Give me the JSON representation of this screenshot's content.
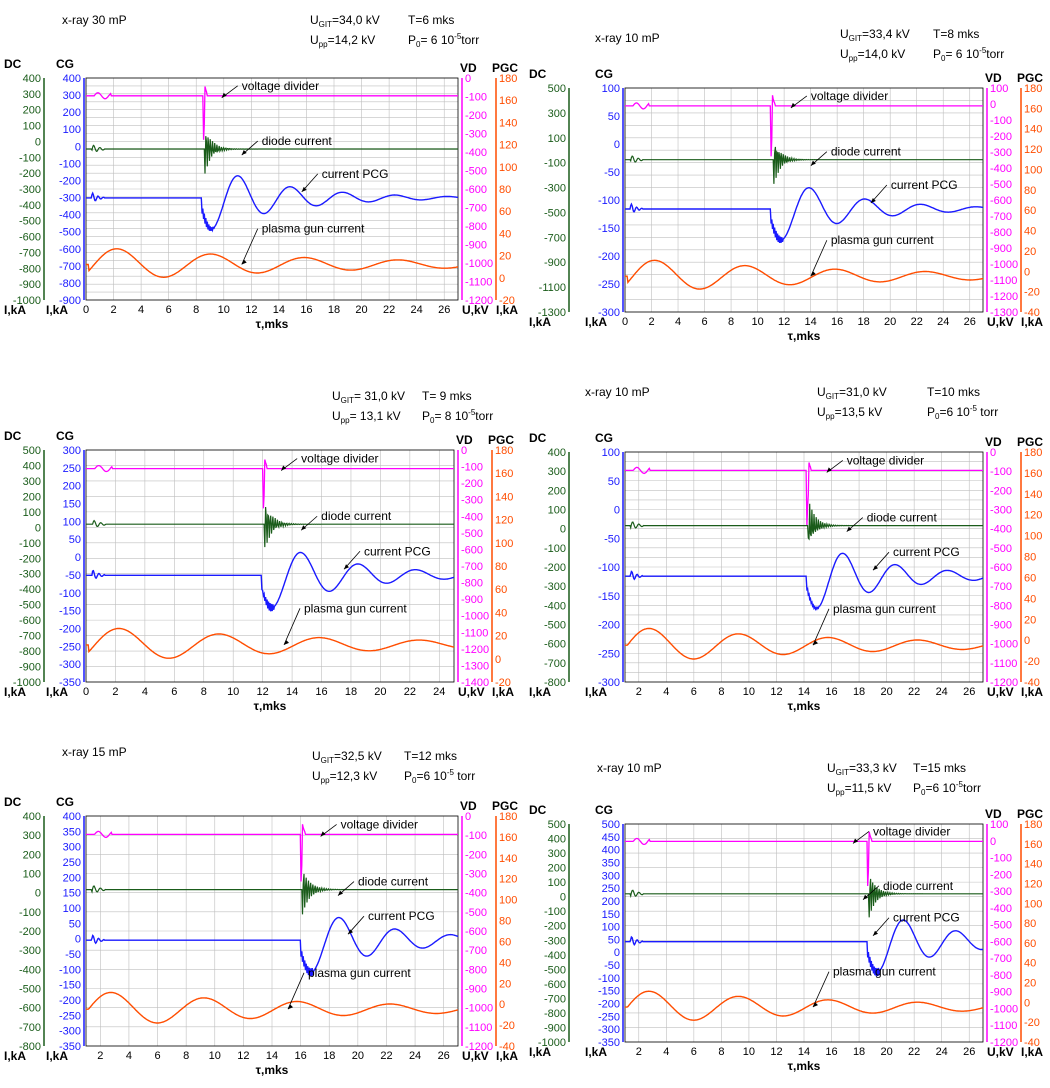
{
  "colors": {
    "dc": "#1a5c1a",
    "cg": "#1a1aff",
    "vd": "#ff00ff",
    "pgc": "#ff4d00",
    "grid": "#bfbfbf",
    "text": "#000000"
  },
  "chart_data": [
    {
      "type": "line",
      "header": {
        "title": "x-ray 30 mP",
        "ugit": "U",
        "ugit_sub": "GIT",
        "ugit_val": "=34,0 kV",
        "upp": "U",
        "upp_sub": "pp",
        "upp_val": "=14,2 kV",
        "t": "T=6 mks",
        "p0": "P",
        "p0_sub": "0",
        "p0_val": "= 6 10",
        "p0_exp": "-5",
        "p0_unit": "torr"
      },
      "axes": {
        "dc_title": "DC",
        "cg_title": "CG",
        "vd_title": "VD",
        "pgc_title": "PGC",
        "bottom_dc": "I,kA",
        "bottom_cg": "I,kA",
        "bottom_vd": "U,kV",
        "bottom_pgc": "I,kA",
        "xlabel": "τ,mks"
      },
      "xlim": [
        0,
        27
      ],
      "xticks": [
        0,
        2,
        4,
        6,
        8,
        10,
        12,
        14,
        16,
        18,
        20,
        22,
        24,
        26
      ],
      "dc_ticks": [
        400,
        350,
        300,
        250,
        200,
        150,
        100,
        50,
        0,
        -50,
        -100,
        -150,
        -200,
        -250,
        -300,
        -350,
        -400,
        -450,
        -500,
        -550,
        -600,
        -650,
        -700,
        -750,
        -800,
        -850,
        -900,
        -950,
        -1000
      ],
      "cg_ticks": [
        400,
        300,
        200,
        100,
        0,
        -100,
        -200,
        -300,
        -400,
        -500,
        -600,
        -700,
        -800,
        -900
      ],
      "vd_ticks": [
        0,
        -100,
        -200,
        -300,
        -400,
        -500,
        -600,
        -700,
        -800,
        -900,
        -1000,
        -1100,
        -1200
      ],
      "pgc_ticks": [
        180,
        160,
        140,
        120,
        100,
        80,
        60,
        40,
        20,
        0,
        -20
      ],
      "labels": {
        "vd": "voltage divider",
        "dc": "diode current",
        "cg": "current PCG",
        "pgc": "plasma gun current"
      },
      "traces": {
        "vd_level": 0,
        "vd_event_t": 8.5,
        "vd_min": -300,
        "dc_level": 0,
        "dc_event_t": 8.6,
        "dc_min": -250,
        "cg_level": 0,
        "cg_event_t": 8.4,
        "cg_min": -300,
        "cg_peaks": [
          100,
          60,
          40,
          20
        ],
        "cg_period": 3.8,
        "pgc_peaks": [
          20,
          -20,
          15,
          -10,
          10,
          -5
        ],
        "pgc_period": 6.8,
        "pgc_t0": 2.3
      }
    },
    {
      "type": "line",
      "header": {
        "title": "x-ray 10 mP",
        "ugit": "U",
        "ugit_sub": "GIT",
        "ugit_val": "=33,4 kV",
        "upp": "U",
        "upp_sub": "pp",
        "upp_val": "=14,0 kV",
        "t": "T=8 mks",
        "p0": "P",
        "p0_sub": "0",
        "p0_val": "= 6 10",
        "p0_exp": "-5",
        "p0_unit": "torr"
      },
      "axes": {
        "dc_title": "DC",
        "cg_title": "CG",
        "vd_title": "VD",
        "pgc_title": "PGC",
        "bottom_dc": "I,kA",
        "bottom_cg": "I,kA",
        "bottom_vd": "U,kV",
        "bottom_pgc": "I,kA",
        "xlabel": "τ,mks"
      },
      "xlim": [
        0,
        27
      ],
      "xticks": [
        0,
        2,
        4,
        6,
        8,
        10,
        12,
        14,
        16,
        18,
        20,
        22,
        24,
        26
      ],
      "dc_ticks": [
        500,
        400,
        300,
        200,
        100,
        0,
        -100,
        -200,
        -300,
        -400,
        -500,
        -600,
        -700,
        -800,
        -900,
        -1000,
        -1100,
        -1200,
        -1300
      ],
      "cg_ticks": [
        100,
        50,
        0,
        -50,
        -100,
        -150,
        -200,
        -250,
        -300
      ],
      "vd_ticks": [
        100,
        0,
        -100,
        -200,
        -300,
        -400,
        -500,
        -600,
        -700,
        -800,
        -900,
        -1000,
        -1100,
        -1200,
        -1300
      ],
      "pgc_ticks": [
        180,
        160,
        140,
        120,
        100,
        80,
        60,
        40,
        20,
        0,
        -20,
        -40
      ],
      "labels": {
        "vd": "voltage divider",
        "dc": "diode current",
        "cg": "current PCG",
        "pgc": "plasma gun current"
      },
      "traces": {
        "vd_level": 0,
        "vd_event_t": 11.0,
        "vd_min": -400,
        "dc_level": -100,
        "dc_event_t": 11.2,
        "dc_min": -400,
        "cg_level": -700,
        "cg_event_t": 11.0,
        "cg_min": -950,
        "cg_peaks": [
          -550,
          -600,
          -620,
          -640
        ],
        "cg_period": 4.2,
        "pgc_peaks": [
          20,
          -20,
          15,
          -10,
          10,
          -5
        ],
        "pgc_period": 6.8,
        "pgc_t0": 2.3
      }
    },
    {
      "type": "line",
      "header": {
        "title": "",
        "ugit": "U",
        "ugit_sub": "GIT",
        "ugit_val": "= 31,0 kV",
        "upp": "U",
        "upp_sub": "pp",
        "upp_val": "= 13,1 kV",
        "t": "T= 9 mks",
        "p0": "P",
        "p0_sub": "0",
        "p0_val": "= 8 10",
        "p0_exp": "-5",
        "p0_unit": "torr"
      },
      "axes": {
        "dc_title": "DC",
        "cg_title": "CG",
        "vd_title": "VD",
        "pgc_title": "PGC",
        "bottom_dc": "I,kA",
        "bottom_cg": "I,kA",
        "bottom_vd": "U,kV",
        "bottom_pgc": "I,kA",
        "xlabel": "τ,mks"
      },
      "xlim": [
        0,
        25
      ],
      "xticks": [
        0,
        2,
        4,
        6,
        8,
        10,
        12,
        14,
        16,
        18,
        20,
        22,
        24
      ],
      "dc_ticks": [
        500,
        400,
        300,
        200,
        100,
        0,
        -100,
        -200,
        -300,
        -400,
        -500,
        -600,
        -700,
        -800,
        -900,
        -1000
      ],
      "cg_ticks": [
        300,
        250,
        200,
        150,
        100,
        50,
        0,
        -50,
        -100,
        -150,
        -200,
        -250,
        -300,
        -350
      ],
      "vd_ticks": [
        0,
        -100,
        -200,
        -300,
        -400,
        -500,
        -600,
        -700,
        -800,
        -900,
        -1000,
        -1100,
        -1200,
        -1300,
        -1400
      ],
      "pgc_ticks": [
        180,
        160,
        140,
        120,
        100,
        80,
        60,
        40,
        20,
        0,
        -20
      ],
      "labels": {
        "vd": "voltage divider",
        "dc": "diode current",
        "cg": "current PCG",
        "pgc": "plasma gun current"
      },
      "traces": {
        "vd_level": 0,
        "vd_event_t": 12.0,
        "vd_min": -250,
        "dc_level": 0,
        "dc_event_t": 12.1,
        "dc_min": -200,
        "cg_level": 0,
        "cg_event_t": 11.9,
        "cg_min": -150,
        "cg_peaks": [
          100,
          70,
          50,
          30
        ],
        "cg_period": 3.9,
        "pgc_peaks": [
          20,
          -20,
          15,
          -10,
          10,
          -5
        ],
        "pgc_period": 6.8,
        "pgc_t0": 2.3
      }
    },
    {
      "type": "line",
      "header": {
        "title": "x-ray 10 mP",
        "ugit": "U",
        "ugit_sub": "GIT",
        "ugit_val": "=31,0 kV",
        "upp": "U",
        "upp_sub": "pp",
        "upp_val": "=13,5 kV",
        "t": "T=10 mks",
        "p0": "P",
        "p0_sub": "0",
        "p0_val": "=6 10",
        "p0_exp": "-5",
        "p0_unit": " torr"
      },
      "axes": {
        "dc_title": "DC",
        "cg_title": "CG",
        "vd_title": "VD",
        "pgc_title": "PGC",
        "bottom_dc": "I,kA",
        "bottom_cg": "I,kA",
        "bottom_vd": "U,kV",
        "bottom_pgc": "I,kA",
        "xlabel": "τ,mks"
      },
      "xlim": [
        1,
        27
      ],
      "xticks": [
        2,
        4,
        6,
        8,
        10,
        12,
        14,
        16,
        18,
        20,
        22,
        24,
        26
      ],
      "dc_ticks": [
        400,
        350,
        300,
        250,
        200,
        150,
        100,
        50,
        0,
        -50,
        -100,
        -150,
        -200,
        -250,
        -300,
        -350,
        -400,
        -450,
        -500,
        -550,
        -600,
        -650,
        -700,
        -750,
        -800
      ],
      "cg_ticks": [
        100,
        50,
        0,
        -50,
        -100,
        -150,
        -200,
        -250,
        -300
      ],
      "vd_ticks": [
        0,
        -100,
        -200,
        -300,
        -400,
        -500,
        -600,
        -700,
        -800,
        -900,
        -1000,
        -1100,
        -1200
      ],
      "pgc_ticks": [
        180,
        160,
        140,
        120,
        100,
        80,
        60,
        40,
        20,
        0,
        -20,
        -40
      ],
      "labels": {
        "vd": "voltage divider",
        "dc": "diode current",
        "cg": "current PCG",
        "pgc": "plasma gun current"
      },
      "traces": {
        "vd_level": 0,
        "vd_event_t": 14.2,
        "vd_min": -350,
        "dc_level": 0,
        "dc_event_t": 14.3,
        "dc_min": -200,
        "cg_level": 0,
        "cg_event_t": 14.2,
        "cg_min": -200,
        "cg_peaks": [
          80,
          50,
          40,
          30
        ],
        "cg_period": 3.8,
        "pgc_peaks": [
          30,
          -40,
          25,
          -20,
          20,
          -10
        ],
        "pgc_period": 6.5,
        "pgc_t0": 2.8
      }
    },
    {
      "type": "line",
      "header": {
        "title": "x-ray 15 mP",
        "ugit": "U",
        "ugit_sub": "GIT",
        "ugit_val": "=32,5 kV",
        "upp": "U",
        "upp_sub": "pp",
        "upp_val": "=12,3 kV",
        "t": "T=12 mks",
        "p0": "P",
        "p0_sub": "0",
        "p0_val": "=6 10",
        "p0_exp": "-5",
        "p0_unit": " torr"
      },
      "axes": {
        "dc_title": "DC",
        "cg_title": "CG",
        "vd_title": "VD",
        "pgc_title": "PGC",
        "bottom_dc": "I,kA",
        "bottom_cg": "I,kA",
        "bottom_vd": "U,kV",
        "bottom_pgc": "I,kA",
        "xlabel": "τ,mks"
      },
      "xlim": [
        1,
        27
      ],
      "xticks": [
        2,
        4,
        6,
        8,
        10,
        12,
        14,
        16,
        18,
        20,
        22,
        24,
        26
      ],
      "dc_ticks": [
        400,
        300,
        200,
        100,
        0,
        -100,
        -200,
        -300,
        -400,
        -500,
        -600,
        -700,
        -800
      ],
      "cg_ticks": [
        400,
        350,
        300,
        250,
        200,
        150,
        100,
        50,
        0,
        -50,
        -100,
        -150,
        -200,
        -250,
        -300,
        -350
      ],
      "vd_ticks": [
        0,
        -100,
        -200,
        -300,
        -400,
        -500,
        -600,
        -700,
        -800,
        -900,
        -1000,
        -1100,
        -1200
      ],
      "pgc_ticks": [
        180,
        160,
        140,
        120,
        100,
        80,
        60,
        40,
        20,
        0,
        -20,
        -40
      ],
      "labels": {
        "vd": "voltage divider",
        "dc": "diode current",
        "cg": "current PCG",
        "pgc": "plasma gun current"
      },
      "traces": {
        "vd_level": 0,
        "vd_event_t": 16.0,
        "vd_min": -350,
        "dc_level": 0,
        "dc_event_t": 16.1,
        "dc_min": -200,
        "cg_level": 0,
        "cg_event_t": 16.0,
        "cg_min": -250,
        "cg_peaks": [
          100,
          80,
          60,
          40
        ],
        "cg_period": 3.9,
        "pgc_peaks": [
          30,
          -40,
          25,
          -20,
          20,
          -10
        ],
        "pgc_period": 6.5,
        "pgc_t0": 2.8
      }
    },
    {
      "type": "line",
      "header": {
        "title": "x-ray 10 mP",
        "ugit": "U",
        "ugit_sub": "GIT",
        "ugit_val": "=33,3 kV",
        "upp": "U",
        "upp_sub": "pp",
        "upp_val": "=11,5 kV",
        "t": "T=15 mks",
        "p0": "P",
        "p0_sub": "0",
        "p0_val": "=6 10",
        "p0_exp": "-5",
        "p0_unit": "torr"
      },
      "axes": {
        "dc_title": "DC",
        "cg_title": "CG",
        "vd_title": "VD",
        "pgc_title": "PGC",
        "bottom_dc": "I,kA",
        "bottom_cg": "I,kA",
        "bottom_vd": "U,kV",
        "bottom_pgc": "I,kA",
        "xlabel": "τ,mks"
      },
      "xlim": [
        1,
        27
      ],
      "xticks": [
        2,
        4,
        6,
        8,
        10,
        12,
        14,
        16,
        18,
        20,
        22,
        24,
        26
      ],
      "dc_ticks": [
        500,
        400,
        300,
        200,
        100,
        0,
        -100,
        -200,
        -300,
        -400,
        -500,
        -600,
        -700,
        -800,
        -900,
        -1000
      ],
      "cg_ticks": [
        500,
        450,
        400,
        350,
        300,
        250,
        200,
        150,
        100,
        50,
        0,
        -50,
        -100,
        -150,
        -200,
        -250,
        -300,
        -350
      ],
      "vd_ticks": [
        100,
        0,
        -100,
        -200,
        -300,
        -400,
        -500,
        -600,
        -700,
        -800,
        -900,
        -1000,
        -1100,
        -1200
      ],
      "pgc_ticks": [
        180,
        160,
        140,
        120,
        100,
        80,
        60,
        40,
        20,
        0,
        -20,
        -40
      ],
      "labels": {
        "vd": "voltage divider",
        "dc": "diode current",
        "cg": "current PCG",
        "pgc": "plasma gun current"
      },
      "traces": {
        "vd_level": 0,
        "vd_event_t": 18.6,
        "vd_min": -400,
        "dc_level": 0,
        "dc_event_t": 18.7,
        "dc_min": -200,
        "cg_level": 0,
        "cg_event_t": 18.6,
        "cg_min": -200,
        "cg_peaks": [
          90,
          60,
          40,
          30
        ],
        "cg_period": 3.8,
        "pgc_peaks": [
          30,
          -40,
          25,
          -20,
          20,
          -10
        ],
        "pgc_period": 6.5,
        "pgc_t0": 2.8
      }
    }
  ]
}
